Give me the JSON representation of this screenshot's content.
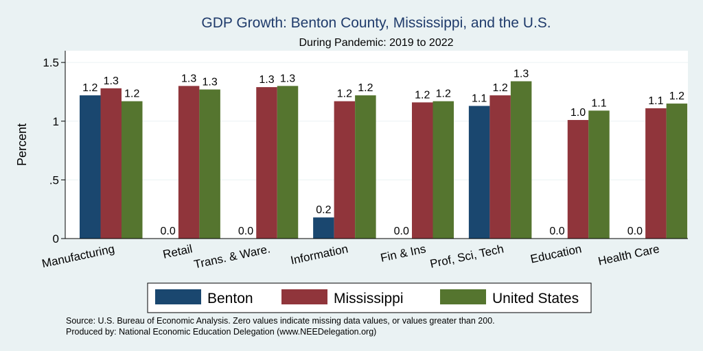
{
  "chart_data": {
    "type": "bar",
    "title": "GDP Growth: Benton County, Mississippi, and the U.S.",
    "subtitle": "During Pandemic: 2019 to 2022",
    "ylabel": "Percent",
    "ylim": [
      0,
      1.6
    ],
    "yticks": [
      0,
      0.5,
      1,
      1.5
    ],
    "ytick_labels": [
      "0",
      ".5",
      "1",
      "1.5"
    ],
    "grid": true,
    "legend_position": "bottom",
    "categories": [
      "Manufacturing",
      "Retail",
      "Trans. & Ware.",
      "Information",
      "Fin & Ins",
      "Prof, Sci, Tech",
      "Education",
      "Health Care"
    ],
    "series": [
      {
        "name": "Benton",
        "color": "#1a476f",
        "values": [
          1.22,
          0,
          0,
          0.18,
          0,
          1.13,
          0,
          0
        ],
        "labels": [
          "1.2",
          "0.0",
          "0.0",
          "0.2",
          "0.0",
          "1.1",
          "0.0",
          "0.0"
        ]
      },
      {
        "name": "Mississippi",
        "color": "#90353b",
        "values": [
          1.28,
          1.3,
          1.29,
          1.17,
          1.16,
          1.22,
          1.01,
          1.11
        ],
        "labels": [
          "1.3",
          "1.3",
          "1.3",
          "1.2",
          "1.2",
          "1.2",
          "1.0",
          "1.1"
        ]
      },
      {
        "name": "United States",
        "color": "#55752f",
        "values": [
          1.17,
          1.27,
          1.3,
          1.22,
          1.17,
          1.34,
          1.09,
          1.15
        ],
        "labels": [
          "1.2",
          "1.3",
          "1.3",
          "1.2",
          "1.2",
          "1.3",
          "1.1",
          "1.2"
        ]
      }
    ],
    "notes": [
      "Source: U.S. Bureau of Economic Analysis. Zero values indicate missing data values, or values greater than 200.",
      "Produced by: National Economic Education Delegation (www.NEEDelegation.org)"
    ]
  }
}
